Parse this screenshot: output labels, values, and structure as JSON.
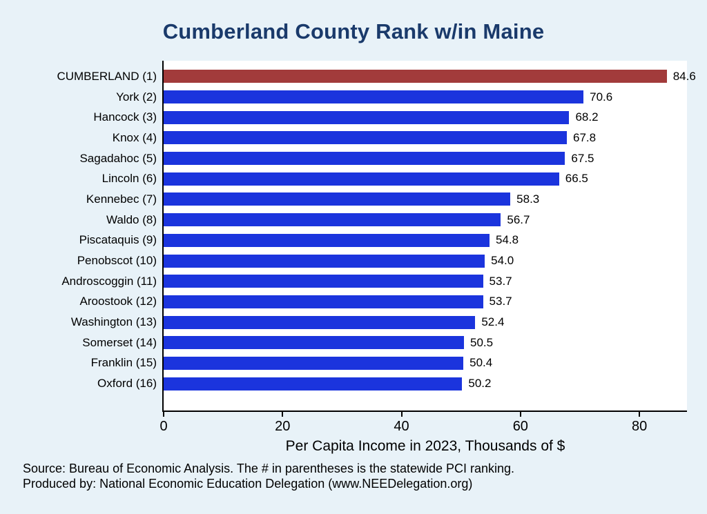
{
  "title": "Cumberland County Rank w/in Maine",
  "colors": {
    "highlight_bar": "#a23b3b",
    "default_bar": "#1b34dd",
    "title_text": "#1a3a6b",
    "background": "#e8f2f8",
    "plot_background": "#ffffff"
  },
  "chart_data": {
    "type": "bar",
    "orientation": "horizontal",
    "title": "Cumberland County Rank w/in Maine",
    "xlabel": "Per Capita Income in 2023, Thousands of $",
    "ylabel": "",
    "xlim": [
      0,
      88
    ],
    "x_ticks": [
      0,
      20,
      40,
      60,
      80
    ],
    "grid": false,
    "legend": false,
    "items": [
      {
        "label": "CUMBERLAND",
        "rank": "(1)",
        "value": 84.6,
        "display": "84.6",
        "highlight": true
      },
      {
        "label": "York",
        "rank": "(2)",
        "value": 70.6,
        "display": "70.6",
        "highlight": false
      },
      {
        "label": "Hancock",
        "rank": "(3)",
        "value": 68.2,
        "display": "68.2",
        "highlight": false
      },
      {
        "label": "Knox",
        "rank": "(4)",
        "value": 67.8,
        "display": "67.8",
        "highlight": false
      },
      {
        "label": "Sagadahoc",
        "rank": "(5)",
        "value": 67.5,
        "display": "67.5",
        "highlight": false
      },
      {
        "label": "Lincoln",
        "rank": "(6)",
        "value": 66.5,
        "display": "66.5",
        "highlight": false
      },
      {
        "label": "Kennebec",
        "rank": "(7)",
        "value": 58.3,
        "display": "58.3",
        "highlight": false
      },
      {
        "label": "Waldo",
        "rank": "(8)",
        "value": 56.7,
        "display": "56.7",
        "highlight": false
      },
      {
        "label": "Piscataquis",
        "rank": "(9)",
        "value": 54.8,
        "display": "54.8",
        "highlight": false
      },
      {
        "label": "Penobscot",
        "rank": "(10)",
        "value": 54.0,
        "display": "54.0",
        "highlight": false
      },
      {
        "label": "Androscoggin",
        "rank": "(11)",
        "value": 53.7,
        "display": "53.7",
        "highlight": false
      },
      {
        "label": "Aroostook",
        "rank": "(12)",
        "value": 53.7,
        "display": "53.7",
        "highlight": false
      },
      {
        "label": "Washington",
        "rank": "(13)",
        "value": 52.4,
        "display": "52.4",
        "highlight": false
      },
      {
        "label": "Somerset",
        "rank": "(14)",
        "value": 50.5,
        "display": "50.5",
        "highlight": false
      },
      {
        "label": "Franklin",
        "rank": "(15)",
        "value": 50.4,
        "display": "50.4",
        "highlight": false
      },
      {
        "label": "Oxford",
        "rank": "(16)",
        "value": 50.2,
        "display": "50.2",
        "highlight": false
      }
    ]
  },
  "footer": {
    "line1": "Source: Bureau of Economic Analysis. The # in parentheses is the statewide PCI ranking.",
    "line2": "Produced by: National Economic Education Delegation (www.NEEDelegation.org)"
  }
}
